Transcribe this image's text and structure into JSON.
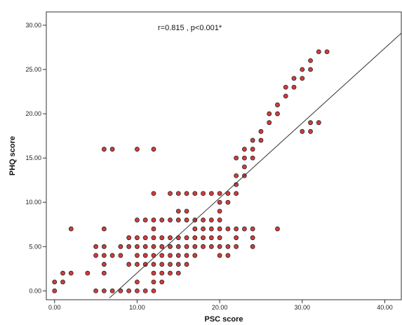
{
  "chart_data": {
    "type": "scatter",
    "title": "",
    "annotation": "r=0.815 , p<0.001*",
    "xlabel": "PSC score",
    "ylabel": "PHQ score",
    "xlim": [
      -1,
      42
    ],
    "ylim": [
      -1,
      31.5
    ],
    "x_ticks": [
      0,
      10,
      20,
      30,
      40
    ],
    "x_tick_labels": [
      "0.00",
      "10.00",
      "20.00",
      "30.00",
      "40.00"
    ],
    "y_ticks": [
      0,
      5,
      10,
      15,
      20,
      25,
      30
    ],
    "y_tick_labels": [
      "0.00",
      "5.00",
      "10.00",
      "15.00",
      "20.00",
      "25.00",
      "30.00"
    ],
    "grid": false,
    "point_color": "#d23c3c",
    "point_edge_color": "#222222",
    "fit_line": {
      "x": [
        6.65,
        42
      ],
      "y": [
        -0.8,
        29.1
      ],
      "color": "#333333"
    },
    "series": [
      {
        "points": [
          [
            0,
            0
          ],
          [
            0,
            1
          ],
          [
            1,
            1
          ],
          [
            1,
            2
          ],
          [
            2,
            2
          ],
          [
            2,
            7
          ],
          [
            4,
            2
          ],
          [
            5,
            0
          ],
          [
            5,
            4
          ],
          [
            5,
            5
          ],
          [
            6,
            0
          ],
          [
            6,
            2
          ],
          [
            6,
            3
          ],
          [
            6,
            4
          ],
          [
            6,
            5
          ],
          [
            6,
            7
          ],
          [
            6,
            16
          ],
          [
            7,
            0
          ],
          [
            7,
            4
          ],
          [
            7,
            16
          ],
          [
            8,
            0
          ],
          [
            8,
            4
          ],
          [
            8,
            5
          ],
          [
            9,
            0
          ],
          [
            9,
            3
          ],
          [
            9,
            5
          ],
          [
            9,
            6
          ],
          [
            10,
            0
          ],
          [
            10,
            1
          ],
          [
            10,
            3
          ],
          [
            10,
            4
          ],
          [
            10,
            5
          ],
          [
            10,
            6
          ],
          [
            10,
            8
          ],
          [
            10,
            16
          ],
          [
            11,
            0
          ],
          [
            11,
            3
          ],
          [
            11,
            4
          ],
          [
            11,
            5
          ],
          [
            11,
            6
          ],
          [
            11,
            8
          ],
          [
            12,
            0
          ],
          [
            12,
            1
          ],
          [
            12,
            2
          ],
          [
            12,
            3
          ],
          [
            12,
            4
          ],
          [
            12,
            5
          ],
          [
            12,
            6
          ],
          [
            12,
            7
          ],
          [
            12,
            8
          ],
          [
            12,
            11
          ],
          [
            12,
            16
          ],
          [
            13,
            1
          ],
          [
            13,
            2
          ],
          [
            13,
            3
          ],
          [
            13,
            4
          ],
          [
            13,
            5
          ],
          [
            13,
            6
          ],
          [
            13,
            8
          ],
          [
            14,
            2
          ],
          [
            14,
            3
          ],
          [
            14,
            4
          ],
          [
            14,
            5
          ],
          [
            14,
            6
          ],
          [
            14,
            8
          ],
          [
            14,
            11
          ],
          [
            15,
            2
          ],
          [
            15,
            3
          ],
          [
            15,
            4
          ],
          [
            15,
            5
          ],
          [
            15,
            6
          ],
          [
            15,
            8
          ],
          [
            15,
            9
          ],
          [
            15,
            11
          ],
          [
            16,
            3
          ],
          [
            16,
            4
          ],
          [
            16,
            5
          ],
          [
            16,
            6
          ],
          [
            16,
            8
          ],
          [
            16,
            9
          ],
          [
            16,
            11
          ],
          [
            17,
            4
          ],
          [
            17,
            5
          ],
          [
            17,
            6
          ],
          [
            17,
            7
          ],
          [
            17,
            8
          ],
          [
            17,
            11
          ],
          [
            18,
            5
          ],
          [
            18,
            6
          ],
          [
            18,
            7
          ],
          [
            18,
            8
          ],
          [
            18,
            11
          ],
          [
            19,
            5
          ],
          [
            19,
            6
          ],
          [
            19,
            7
          ],
          [
            19,
            8
          ],
          [
            19,
            11
          ],
          [
            20,
            4
          ],
          [
            20,
            5
          ],
          [
            20,
            6
          ],
          [
            20,
            7
          ],
          [
            20,
            8
          ],
          [
            20,
            9
          ],
          [
            20,
            10
          ],
          [
            20,
            11
          ],
          [
            21,
            4
          ],
          [
            21,
            5
          ],
          [
            21,
            7
          ],
          [
            21,
            10
          ],
          [
            21,
            11
          ],
          [
            22,
            5
          ],
          [
            22,
            6
          ],
          [
            22,
            7
          ],
          [
            22,
            11
          ],
          [
            22,
            12
          ],
          [
            22,
            13
          ],
          [
            22,
            15
          ],
          [
            23,
            7
          ],
          [
            23,
            13
          ],
          [
            23,
            14
          ],
          [
            23,
            15
          ],
          [
            23,
            16
          ],
          [
            24,
            5
          ],
          [
            24,
            6
          ],
          [
            24,
            7
          ],
          [
            24,
            15
          ],
          [
            24,
            16
          ],
          [
            24,
            17
          ],
          [
            25,
            17
          ],
          [
            25,
            18
          ],
          [
            26,
            19
          ],
          [
            26,
            20
          ],
          [
            27,
            7
          ],
          [
            27,
            20
          ],
          [
            27,
            21
          ],
          [
            28,
            22
          ],
          [
            28,
            23
          ],
          [
            29,
            23
          ],
          [
            29,
            24
          ],
          [
            30,
            18
          ],
          [
            30,
            24
          ],
          [
            30,
            25
          ],
          [
            31,
            18
          ],
          [
            31,
            19
          ],
          [
            31,
            25
          ],
          [
            31,
            26
          ],
          [
            32,
            19
          ],
          [
            32,
            27
          ],
          [
            33,
            27
          ]
        ]
      }
    ]
  }
}
